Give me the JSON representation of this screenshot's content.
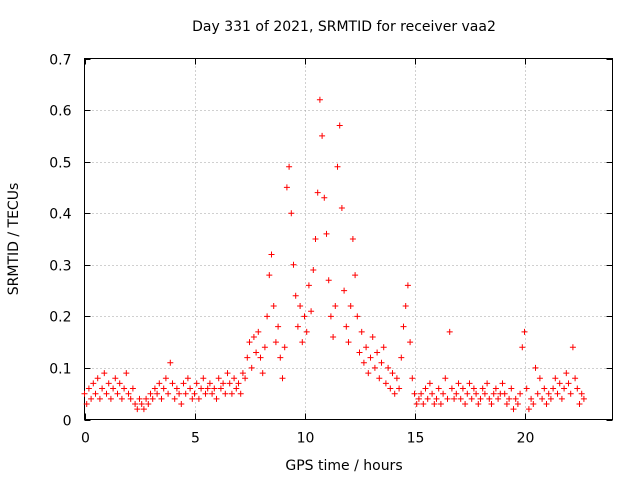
{
  "chart_data": {
    "type": "scatter",
    "title": "Day 331 of 2021, SRMTID for receiver vaa2",
    "xlabel": "GPS time / hours",
    "ylabel": "SRMTID / TECUs",
    "xlim": [
      0,
      24
    ],
    "ylim": [
      0,
      0.7
    ],
    "xticks": [
      0,
      5,
      10,
      15,
      20
    ],
    "xtick_labels": [
      "0",
      "5",
      "10",
      "15",
      "20"
    ],
    "yticks": [
      0,
      0.1,
      0.2,
      0.3,
      0.4,
      0.5,
      0.6,
      0.7
    ],
    "ytick_labels": [
      "0",
      "0.1",
      "0.2",
      "0.3",
      "0.4",
      "0.5",
      "0.6",
      "0.7"
    ],
    "grid": true,
    "marker": "+",
    "color": "#ff0000",
    "series": [
      {
        "name": "SRMTID",
        "points": [
          [
            0.0,
            0.05
          ],
          [
            0.1,
            0.03
          ],
          [
            0.2,
            0.06
          ],
          [
            0.3,
            0.04
          ],
          [
            0.4,
            0.07
          ],
          [
            0.5,
            0.05
          ],
          [
            0.6,
            0.08
          ],
          [
            0.7,
            0.04
          ],
          [
            0.8,
            0.06
          ],
          [
            0.9,
            0.09
          ],
          [
            1.0,
            0.05
          ],
          [
            1.1,
            0.07
          ],
          [
            1.2,
            0.04
          ],
          [
            1.3,
            0.06
          ],
          [
            1.4,
            0.08
          ],
          [
            1.5,
            0.05
          ],
          [
            1.6,
            0.07
          ],
          [
            1.7,
            0.04
          ],
          [
            1.8,
            0.06
          ],
          [
            1.9,
            0.09
          ],
          [
            2.0,
            0.05
          ],
          [
            2.1,
            0.04
          ],
          [
            2.2,
            0.06
          ],
          [
            2.3,
            0.03
          ],
          [
            2.4,
            0.02
          ],
          [
            2.5,
            0.04
          ],
          [
            2.6,
            0.03
          ],
          [
            2.7,
            0.02
          ],
          [
            2.8,
            0.04
          ],
          [
            2.9,
            0.03
          ],
          [
            3.0,
            0.05
          ],
          [
            3.1,
            0.04
          ],
          [
            3.2,
            0.06
          ],
          [
            3.3,
            0.05
          ],
          [
            3.4,
            0.07
          ],
          [
            3.5,
            0.04
          ],
          [
            3.6,
            0.06
          ],
          [
            3.7,
            0.08
          ],
          [
            3.8,
            0.05
          ],
          [
            3.9,
            0.11
          ],
          [
            4.0,
            0.07
          ],
          [
            4.1,
            0.04
          ],
          [
            4.2,
            0.06
          ],
          [
            4.3,
            0.05
          ],
          [
            4.4,
            0.03
          ],
          [
            4.5,
            0.07
          ],
          [
            4.6,
            0.05
          ],
          [
            4.7,
            0.08
          ],
          [
            4.8,
            0.06
          ],
          [
            4.9,
            0.04
          ],
          [
            5.0,
            0.05
          ],
          [
            5.1,
            0.07
          ],
          [
            5.2,
            0.04
          ],
          [
            5.3,
            0.06
          ],
          [
            5.4,
            0.08
          ],
          [
            5.5,
            0.05
          ],
          [
            5.6,
            0.06
          ],
          [
            5.7,
            0.07
          ],
          [
            5.8,
            0.05
          ],
          [
            5.9,
            0.06
          ],
          [
            6.0,
            0.04
          ],
          [
            6.1,
            0.08
          ],
          [
            6.2,
            0.06
          ],
          [
            6.3,
            0.07
          ],
          [
            6.4,
            0.05
          ],
          [
            6.5,
            0.09
          ],
          [
            6.6,
            0.07
          ],
          [
            6.7,
            0.05
          ],
          [
            6.8,
            0.08
          ],
          [
            6.9,
            0.06
          ],
          [
            7.0,
            0.07
          ],
          [
            7.1,
            0.05
          ],
          [
            7.2,
            0.09
          ],
          [
            7.3,
            0.08
          ],
          [
            7.4,
            0.12
          ],
          [
            7.5,
            0.15
          ],
          [
            7.6,
            0.1
          ],
          [
            7.7,
            0.16
          ],
          [
            7.8,
            0.13
          ],
          [
            7.9,
            0.17
          ],
          [
            8.0,
            0.12
          ],
          [
            8.1,
            0.09
          ],
          [
            8.2,
            0.14
          ],
          [
            8.3,
            0.2
          ],
          [
            8.4,
            0.28
          ],
          [
            8.5,
            0.32
          ],
          [
            8.6,
            0.22
          ],
          [
            8.7,
            0.15
          ],
          [
            8.8,
            0.18
          ],
          [
            8.9,
            0.12
          ],
          [
            9.0,
            0.08
          ],
          [
            9.1,
            0.14
          ],
          [
            9.2,
            0.45
          ],
          [
            9.3,
            0.49
          ],
          [
            9.4,
            0.4
          ],
          [
            9.5,
            0.3
          ],
          [
            9.6,
            0.24
          ],
          [
            9.7,
            0.18
          ],
          [
            9.8,
            0.22
          ],
          [
            9.9,
            0.15
          ],
          [
            10.0,
            0.2
          ],
          [
            10.1,
            0.17
          ],
          [
            10.2,
            0.26
          ],
          [
            10.3,
            0.21
          ],
          [
            10.4,
            0.29
          ],
          [
            10.5,
            0.35
          ],
          [
            10.6,
            0.44
          ],
          [
            10.7,
            0.62
          ],
          [
            10.8,
            0.55
          ],
          [
            10.9,
            0.43
          ],
          [
            11.0,
            0.36
          ],
          [
            11.1,
            0.27
          ],
          [
            11.2,
            0.2
          ],
          [
            11.3,
            0.16
          ],
          [
            11.4,
            0.22
          ],
          [
            11.5,
            0.49
          ],
          [
            11.6,
            0.57
          ],
          [
            11.7,
            0.41
          ],
          [
            11.8,
            0.25
          ],
          [
            11.9,
            0.18
          ],
          [
            12.0,
            0.15
          ],
          [
            12.1,
            0.22
          ],
          [
            12.2,
            0.35
          ],
          [
            12.3,
            0.28
          ],
          [
            12.4,
            0.2
          ],
          [
            12.5,
            0.13
          ],
          [
            12.6,
            0.17
          ],
          [
            12.7,
            0.11
          ],
          [
            12.8,
            0.14
          ],
          [
            12.9,
            0.09
          ],
          [
            13.0,
            0.12
          ],
          [
            13.1,
            0.16
          ],
          [
            13.2,
            0.1
          ],
          [
            13.3,
            0.13
          ],
          [
            13.4,
            0.08
          ],
          [
            13.5,
            0.11
          ],
          [
            13.6,
            0.14
          ],
          [
            13.7,
            0.07
          ],
          [
            13.8,
            0.1
          ],
          [
            13.9,
            0.06
          ],
          [
            14.0,
            0.09
          ],
          [
            14.1,
            0.05
          ],
          [
            14.2,
            0.08
          ],
          [
            14.3,
            0.06
          ],
          [
            14.4,
            0.12
          ],
          [
            14.5,
            0.18
          ],
          [
            14.6,
            0.22
          ],
          [
            14.7,
            0.26
          ],
          [
            14.8,
            0.15
          ],
          [
            14.9,
            0.08
          ],
          [
            15.0,
            0.05
          ],
          [
            15.1,
            0.03
          ],
          [
            15.2,
            0.04
          ],
          [
            15.3,
            0.05
          ],
          [
            15.4,
            0.03
          ],
          [
            15.5,
            0.06
          ],
          [
            15.6,
            0.04
          ],
          [
            15.7,
            0.07
          ],
          [
            15.8,
            0.05
          ],
          [
            15.9,
            0.03
          ],
          [
            16.0,
            0.04
          ],
          [
            16.1,
            0.06
          ],
          [
            16.2,
            0.03
          ],
          [
            16.3,
            0.05
          ],
          [
            16.4,
            0.08
          ],
          [
            16.5,
            0.04
          ],
          [
            16.6,
            0.17
          ],
          [
            16.7,
            0.06
          ],
          [
            16.8,
            0.04
          ],
          [
            16.9,
            0.05
          ],
          [
            17.0,
            0.07
          ],
          [
            17.1,
            0.04
          ],
          [
            17.2,
            0.06
          ],
          [
            17.3,
            0.03
          ],
          [
            17.4,
            0.05
          ],
          [
            17.5,
            0.07
          ],
          [
            17.6,
            0.04
          ],
          [
            17.7,
            0.06
          ],
          [
            17.8,
            0.05
          ],
          [
            17.9,
            0.03
          ],
          [
            18.0,
            0.04
          ],
          [
            18.1,
            0.06
          ],
          [
            18.2,
            0.05
          ],
          [
            18.3,
            0.07
          ],
          [
            18.4,
            0.04
          ],
          [
            18.5,
            0.03
          ],
          [
            18.6,
            0.05
          ],
          [
            18.7,
            0.06
          ],
          [
            18.8,
            0.04
          ],
          [
            18.9,
            0.05
          ],
          [
            19.0,
            0.07
          ],
          [
            19.1,
            0.05
          ],
          [
            19.2,
            0.03
          ],
          [
            19.3,
            0.04
          ],
          [
            19.4,
            0.06
          ],
          [
            19.5,
            0.02
          ],
          [
            19.6,
            0.04
          ],
          [
            19.7,
            0.03
          ],
          [
            19.8,
            0.05
          ],
          [
            19.9,
            0.14
          ],
          [
            20.0,
            0.17
          ],
          [
            20.1,
            0.06
          ],
          [
            20.2,
            0.02
          ],
          [
            20.3,
            0.04
          ],
          [
            20.4,
            0.03
          ],
          [
            20.5,
            0.1
          ],
          [
            20.6,
            0.05
          ],
          [
            20.7,
            0.08
          ],
          [
            20.8,
            0.04
          ],
          [
            20.9,
            0.06
          ],
          [
            21.0,
            0.03
          ],
          [
            21.1,
            0.05
          ],
          [
            21.2,
            0.04
          ],
          [
            21.3,
            0.06
          ],
          [
            21.4,
            0.08
          ],
          [
            21.5,
            0.05
          ],
          [
            21.6,
            0.07
          ],
          [
            21.7,
            0.04
          ],
          [
            21.8,
            0.06
          ],
          [
            21.9,
            0.09
          ],
          [
            22.0,
            0.07
          ],
          [
            22.1,
            0.05
          ],
          [
            22.2,
            0.14
          ],
          [
            22.3,
            0.08
          ],
          [
            22.4,
            0.06
          ],
          [
            22.5,
            0.03
          ],
          [
            22.6,
            0.05
          ],
          [
            22.7,
            0.04
          ]
        ]
      }
    ]
  }
}
